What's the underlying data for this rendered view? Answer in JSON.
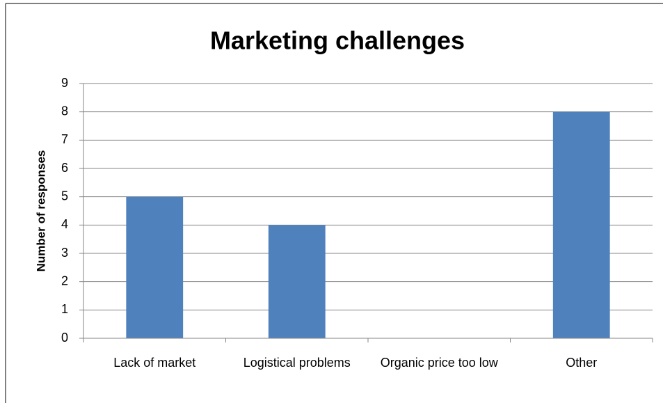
{
  "chart_data": {
    "type": "bar",
    "title": "Marketing challenges",
    "y_label": "Number of responses",
    "categories": [
      "Lack of market",
      "Logistical problems",
      "Organic price too low",
      "Other"
    ],
    "values": [
      5,
      4,
      0,
      8
    ],
    "color": "#4f81bd",
    "ylim": [
      0,
      9
    ],
    "yticks": [
      0,
      1,
      2,
      3,
      4,
      5,
      6,
      7,
      8,
      9
    ],
    "grid": true
  }
}
